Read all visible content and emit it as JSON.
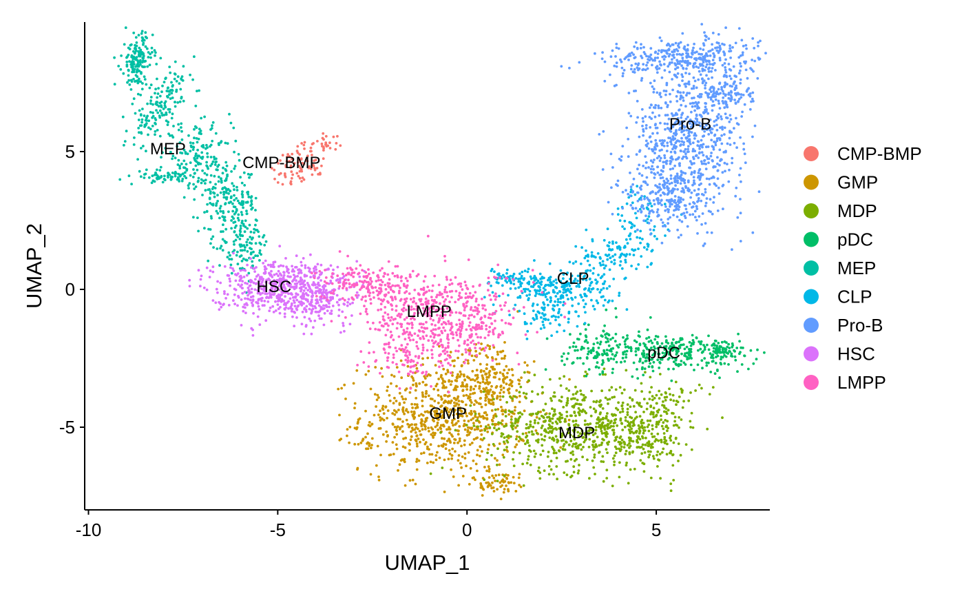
{
  "chart_data": {
    "type": "scatter",
    "title": "",
    "xlabel": "UMAP_1",
    "ylabel": "UMAP_2",
    "xlim": [
      -10.1,
      8.0
    ],
    "ylim": [
      -8.0,
      9.7
    ],
    "x_ticks": [
      -10,
      -5,
      0,
      5
    ],
    "x_tick_labels": [
      "-10",
      "-5",
      "0",
      "5"
    ],
    "y_ticks": [
      -5,
      0,
      5
    ],
    "y_tick_labels": [
      "-5",
      "0",
      "5"
    ],
    "grid": false,
    "legend_position": "right",
    "series": [
      {
        "name": "CMP-BMP",
        "color": "#F8766D",
        "label_at": [
          -4.9,
          4.6
        ],
        "regions": [
          {
            "cx": -4.4,
            "cy": 4.5,
            "sx": 0.45,
            "sy": 0.35,
            "n": 80,
            "rot": 0.8
          },
          {
            "cx": -3.8,
            "cy": 5.3,
            "sx": 0.25,
            "sy": 0.2,
            "n": 25,
            "rot": 0.5
          }
        ]
      },
      {
        "name": "GMP",
        "color": "#CD9600",
        "label_at": [
          -0.5,
          -4.5
        ],
        "regions": [
          {
            "cx": -0.6,
            "cy": -4.6,
            "sx": 1.1,
            "sy": 1.0,
            "n": 750,
            "rot": 0
          },
          {
            "cx": 0.6,
            "cy": -3.2,
            "sx": 0.45,
            "sy": 0.7,
            "n": 150,
            "rot": 0
          },
          {
            "cx": 0.8,
            "cy": -7.0,
            "sx": 0.45,
            "sy": 0.2,
            "n": 60,
            "rot": 0
          },
          {
            "cx": -2.6,
            "cy": -5.6,
            "sx": 0.15,
            "sy": 0.1,
            "n": 12,
            "rot": 0
          }
        ]
      },
      {
        "name": "MDP",
        "color": "#7CAE00",
        "label_at": [
          2.9,
          -5.2
        ],
        "regions": [
          {
            "cx": 2.9,
            "cy": -5.0,
            "sx": 1.2,
            "sy": 0.8,
            "n": 650,
            "rot": 0
          },
          {
            "cx": 4.8,
            "cy": -5.2,
            "sx": 0.45,
            "sy": 0.7,
            "n": 180,
            "rot": 0
          },
          {
            "cx": 5.5,
            "cy": -3.9,
            "sx": 0.35,
            "sy": 0.3,
            "n": 40,
            "rot": 0
          }
        ]
      },
      {
        "name": "pDC",
        "color": "#00BE67",
        "label_at": [
          5.2,
          -2.3
        ],
        "regions": [
          {
            "cx": 5.3,
            "cy": -2.3,
            "sx": 1.2,
            "sy": 0.35,
            "n": 320,
            "rot": 0
          },
          {
            "cx": 3.4,
            "cy": -2.0,
            "sx": 0.4,
            "sy": 0.45,
            "n": 80,
            "rot": 0
          },
          {
            "cx": 6.7,
            "cy": -2.2,
            "sx": 0.35,
            "sy": 0.15,
            "n": 60,
            "rot": 0
          }
        ]
      },
      {
        "name": "MEP",
        "color": "#00BFA4",
        "label_at": [
          -7.9,
          5.1
        ],
        "regions": [
          {
            "cx": -8.7,
            "cy": 8.3,
            "sx": 0.2,
            "sy": 0.5,
            "n": 160,
            "rot": 0
          },
          {
            "cx": -8.1,
            "cy": 6.6,
            "sx": 0.35,
            "sy": 0.8,
            "n": 160,
            "rot": -0.4
          },
          {
            "cx": -7.1,
            "cy": 4.8,
            "sx": 0.45,
            "sy": 0.55,
            "n": 150,
            "rot": 0
          },
          {
            "cx": -6.3,
            "cy": 3.2,
            "sx": 0.4,
            "sy": 0.6,
            "n": 170,
            "rot": 0
          },
          {
            "cx": -5.9,
            "cy": 1.6,
            "sx": 0.35,
            "sy": 0.5,
            "n": 120,
            "rot": 0
          },
          {
            "cx": -8.0,
            "cy": 4.1,
            "sx": 0.35,
            "sy": 0.12,
            "n": 60,
            "rot": 0
          }
        ]
      },
      {
        "name": "CLP",
        "color": "#00B8E7",
        "label_at": [
          2.8,
          0.4
        ],
        "regions": [
          {
            "cx": 2.4,
            "cy": 0.0,
            "sx": 0.7,
            "sy": 0.35,
            "n": 230,
            "rot": 0
          },
          {
            "cx": 1.2,
            "cy": 0.4,
            "sx": 0.3,
            "sy": 0.2,
            "n": 60,
            "rot": 0
          },
          {
            "cx": 2.1,
            "cy": -1.0,
            "sx": 0.4,
            "sy": 0.3,
            "n": 60,
            "rot": 0
          },
          {
            "cx": 3.9,
            "cy": 1.2,
            "sx": 0.5,
            "sy": 0.45,
            "n": 110,
            "rot": 0.6
          },
          {
            "cx": 4.6,
            "cy": 2.5,
            "sx": 0.35,
            "sy": 0.6,
            "n": 60,
            "rot": 0
          }
        ]
      },
      {
        "name": "Pro-B",
        "color": "#619CFF",
        "label_at": [
          5.9,
          6.0
        ],
        "regions": [
          {
            "cx": 5.8,
            "cy": 5.3,
            "sx": 0.75,
            "sy": 1.3,
            "n": 700,
            "rot": 0
          },
          {
            "cx": 5.6,
            "cy": 8.4,
            "sx": 1.0,
            "sy": 0.35,
            "n": 330,
            "rot": 0.1
          },
          {
            "cx": 6.9,
            "cy": 7.2,
            "sx": 0.35,
            "sy": 0.5,
            "n": 140,
            "rot": 0
          },
          {
            "cx": 5.3,
            "cy": 3.3,
            "sx": 0.55,
            "sy": 0.6,
            "n": 180,
            "rot": 0
          }
        ]
      },
      {
        "name": "HSC",
        "color": "#DB72FB",
        "label_at": [
          -5.1,
          0.1
        ],
        "regions": [
          {
            "cx": -5.1,
            "cy": 0.1,
            "sx": 0.8,
            "sy": 0.5,
            "n": 500,
            "rot": 0
          },
          {
            "cx": -3.9,
            "cy": -0.3,
            "sx": 0.55,
            "sy": 0.55,
            "n": 180,
            "rot": 0
          }
        ]
      },
      {
        "name": "LMPP",
        "color": "#FF61C3",
        "label_at": [
          -1.0,
          -0.8
        ],
        "regions": [
          {
            "cx": -0.6,
            "cy": -0.9,
            "sx": 1.0,
            "sy": 0.75,
            "n": 480,
            "rot": 0
          },
          {
            "cx": -2.6,
            "cy": 0.2,
            "sx": 0.65,
            "sy": 0.35,
            "n": 180,
            "rot": 0
          },
          {
            "cx": -1.7,
            "cy": -2.3,
            "sx": 0.45,
            "sy": 0.5,
            "n": 100,
            "rot": 0
          },
          {
            "cx": -0.3,
            "cy": -2.2,
            "sx": 0.4,
            "sy": 0.4,
            "n": 60,
            "rot": 0
          }
        ]
      }
    ]
  }
}
